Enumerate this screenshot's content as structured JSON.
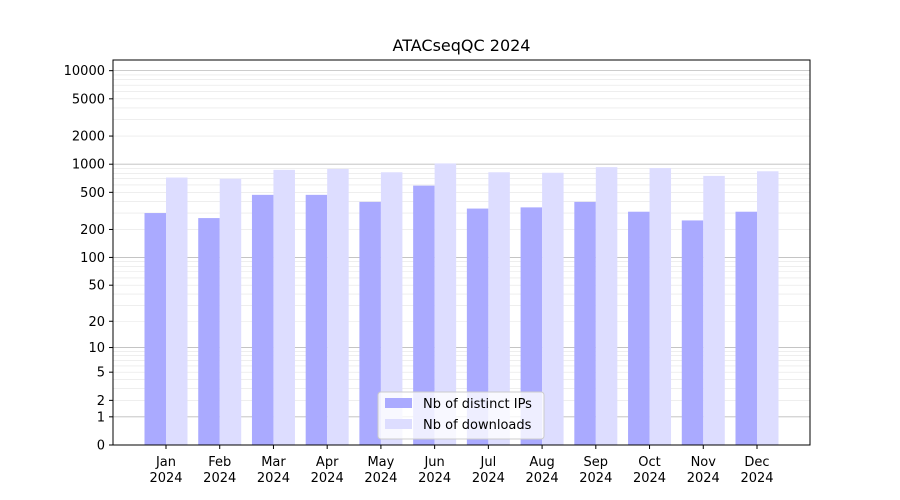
{
  "chart_data": {
    "type": "bar",
    "title": "ATACseqQC 2024",
    "xlabel": "",
    "ylabel": "",
    "yscale": "symlog",
    "ylim": [
      0,
      13000
    ],
    "grid": "horizontal",
    "legend_position": "bottom-center",
    "categories": [
      "Jan\n2024",
      "Feb\n2024",
      "Mar\n2024",
      "Apr\n2024",
      "May\n2024",
      "Jun\n2024",
      "Jul\n2024",
      "Aug\n2024",
      "Sep\n2024",
      "Oct\n2024",
      "Nov\n2024",
      "Dec\n2024"
    ],
    "yticks": [
      0,
      1,
      2,
      5,
      10,
      20,
      50,
      100,
      200,
      500,
      1000,
      2000,
      5000,
      10000
    ],
    "series": [
      {
        "name": "Nb of distinct IPs",
        "color": "#aaaaff",
        "values": [
          300,
          265,
          470,
          470,
          395,
          590,
          335,
          345,
          395,
          310,
          250,
          310
        ]
      },
      {
        "name": "Nb of downloads",
        "color": "#ddddff",
        "values": [
          720,
          700,
          870,
          890,
          820,
          1020,
          820,
          810,
          930,
          910,
          750,
          840
        ]
      }
    ]
  }
}
